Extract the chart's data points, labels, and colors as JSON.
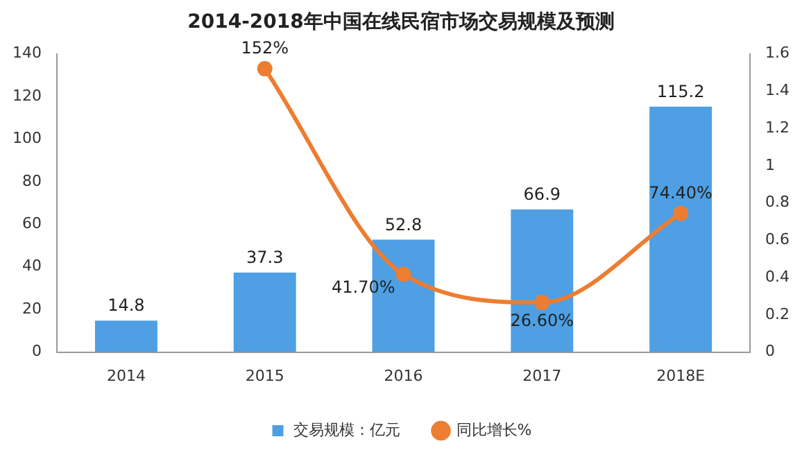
{
  "chart_data": {
    "type": "bar",
    "title": "2014-2018年中国在线民宿市场交易规模及预测",
    "categories": [
      "2014",
      "2015",
      "2016",
      "2017",
      "2018E"
    ],
    "series": [
      {
        "name": "交易规模：亿元",
        "color": "#4e9fe3",
        "values": [
          14.8,
          37.3,
          52.8,
          66.9,
          115.2
        ],
        "value_labels": [
          "14.8",
          "37.3",
          "52.8",
          "66.9",
          "115.2"
        ]
      },
      {
        "name": "同比增长%",
        "type": "line",
        "axis": "y2",
        "color": "#ed7d31",
        "values": [
          null,
          1.52,
          0.417,
          0.266,
          0.744
        ],
        "value_labels": [
          null,
          "152%",
          "41.70%",
          "26.60%",
          "74.40%"
        ]
      }
    ],
    "ylim": [
      0,
      140
    ],
    "yticks": [
      0,
      20,
      40,
      60,
      80,
      100,
      120,
      140
    ],
    "y2lim": [
      0,
      1.6
    ],
    "y2ticks": [
      0,
      0.2,
      0.4,
      0.6,
      0.8,
      1,
      1.2,
      1.4,
      1.6
    ],
    "grid": false,
    "legend": "bottom",
    "marker": "circle"
  }
}
